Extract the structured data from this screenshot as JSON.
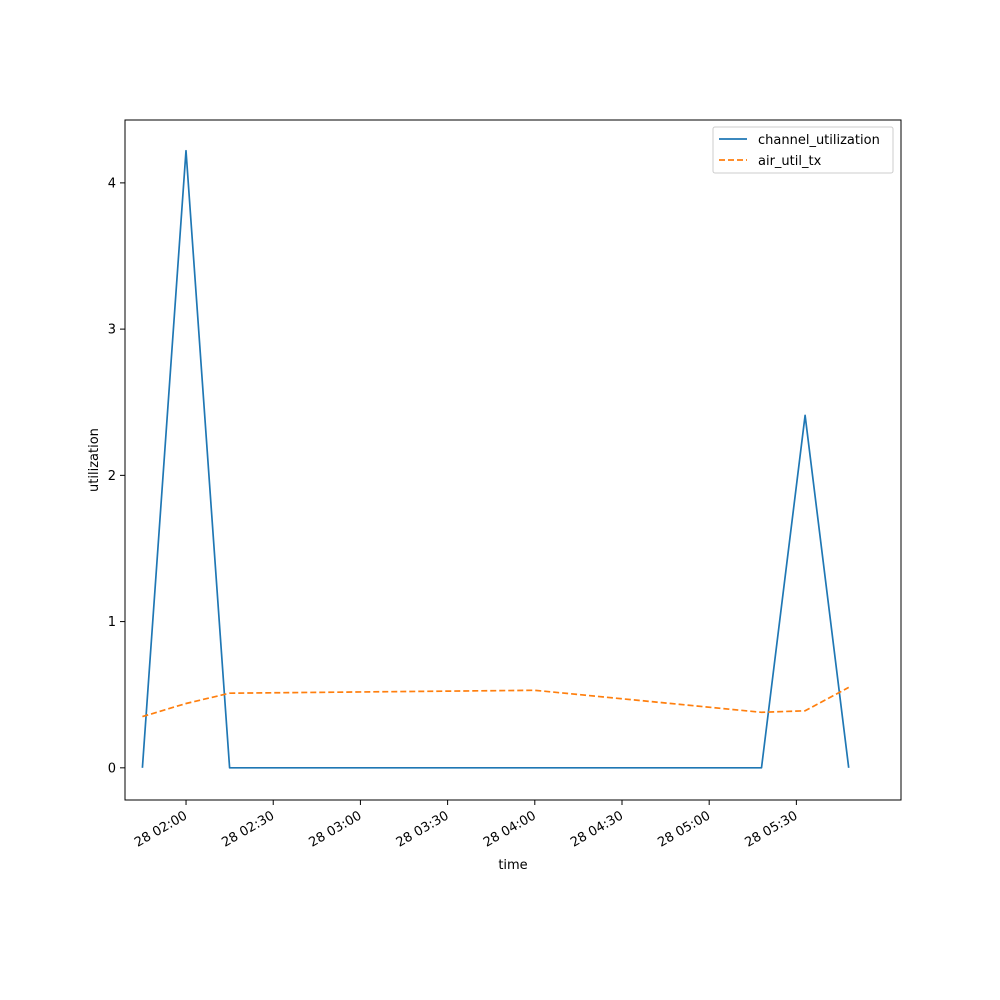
{
  "chart_data": {
    "type": "line",
    "title": "",
    "xlabel": "time",
    "ylabel": "utilization",
    "x_tick_labels": [
      "28 02:00",
      "28 02:30",
      "28 03:00",
      "28 03:30",
      "28 04:00",
      "28 04:30",
      "28 05:00",
      "28 05:30"
    ],
    "y_tick_labels": [
      "0",
      "1",
      "2",
      "3",
      "4"
    ],
    "y_ticks": [
      0,
      1,
      2,
      3,
      4
    ],
    "xlim": [
      "28 01:39",
      "28 06:06"
    ],
    "ylim": [
      -0.22,
      4.43
    ],
    "legend_position": "upper right",
    "grid": false,
    "series": [
      {
        "name": "channel_utilization",
        "color": "#1f77b4",
        "style": "solid",
        "x": [
          "28 01:45",
          "28 02:00",
          "28 02:15",
          "28 05:18",
          "28 05:33",
          "28 05:48"
        ],
        "y": [
          0.0,
          4.22,
          0.0,
          0.0,
          2.41,
          0.0
        ]
      },
      {
        "name": "air_util_tx",
        "color": "#ff7f0e",
        "style": "dashed",
        "x": [
          "28 01:45",
          "28 02:00",
          "28 02:15",
          "28 04:00",
          "28 05:18",
          "28 05:33",
          "28 05:48"
        ],
        "y": [
          0.35,
          0.44,
          0.51,
          0.53,
          0.38,
          0.39,
          0.55
        ]
      }
    ]
  }
}
